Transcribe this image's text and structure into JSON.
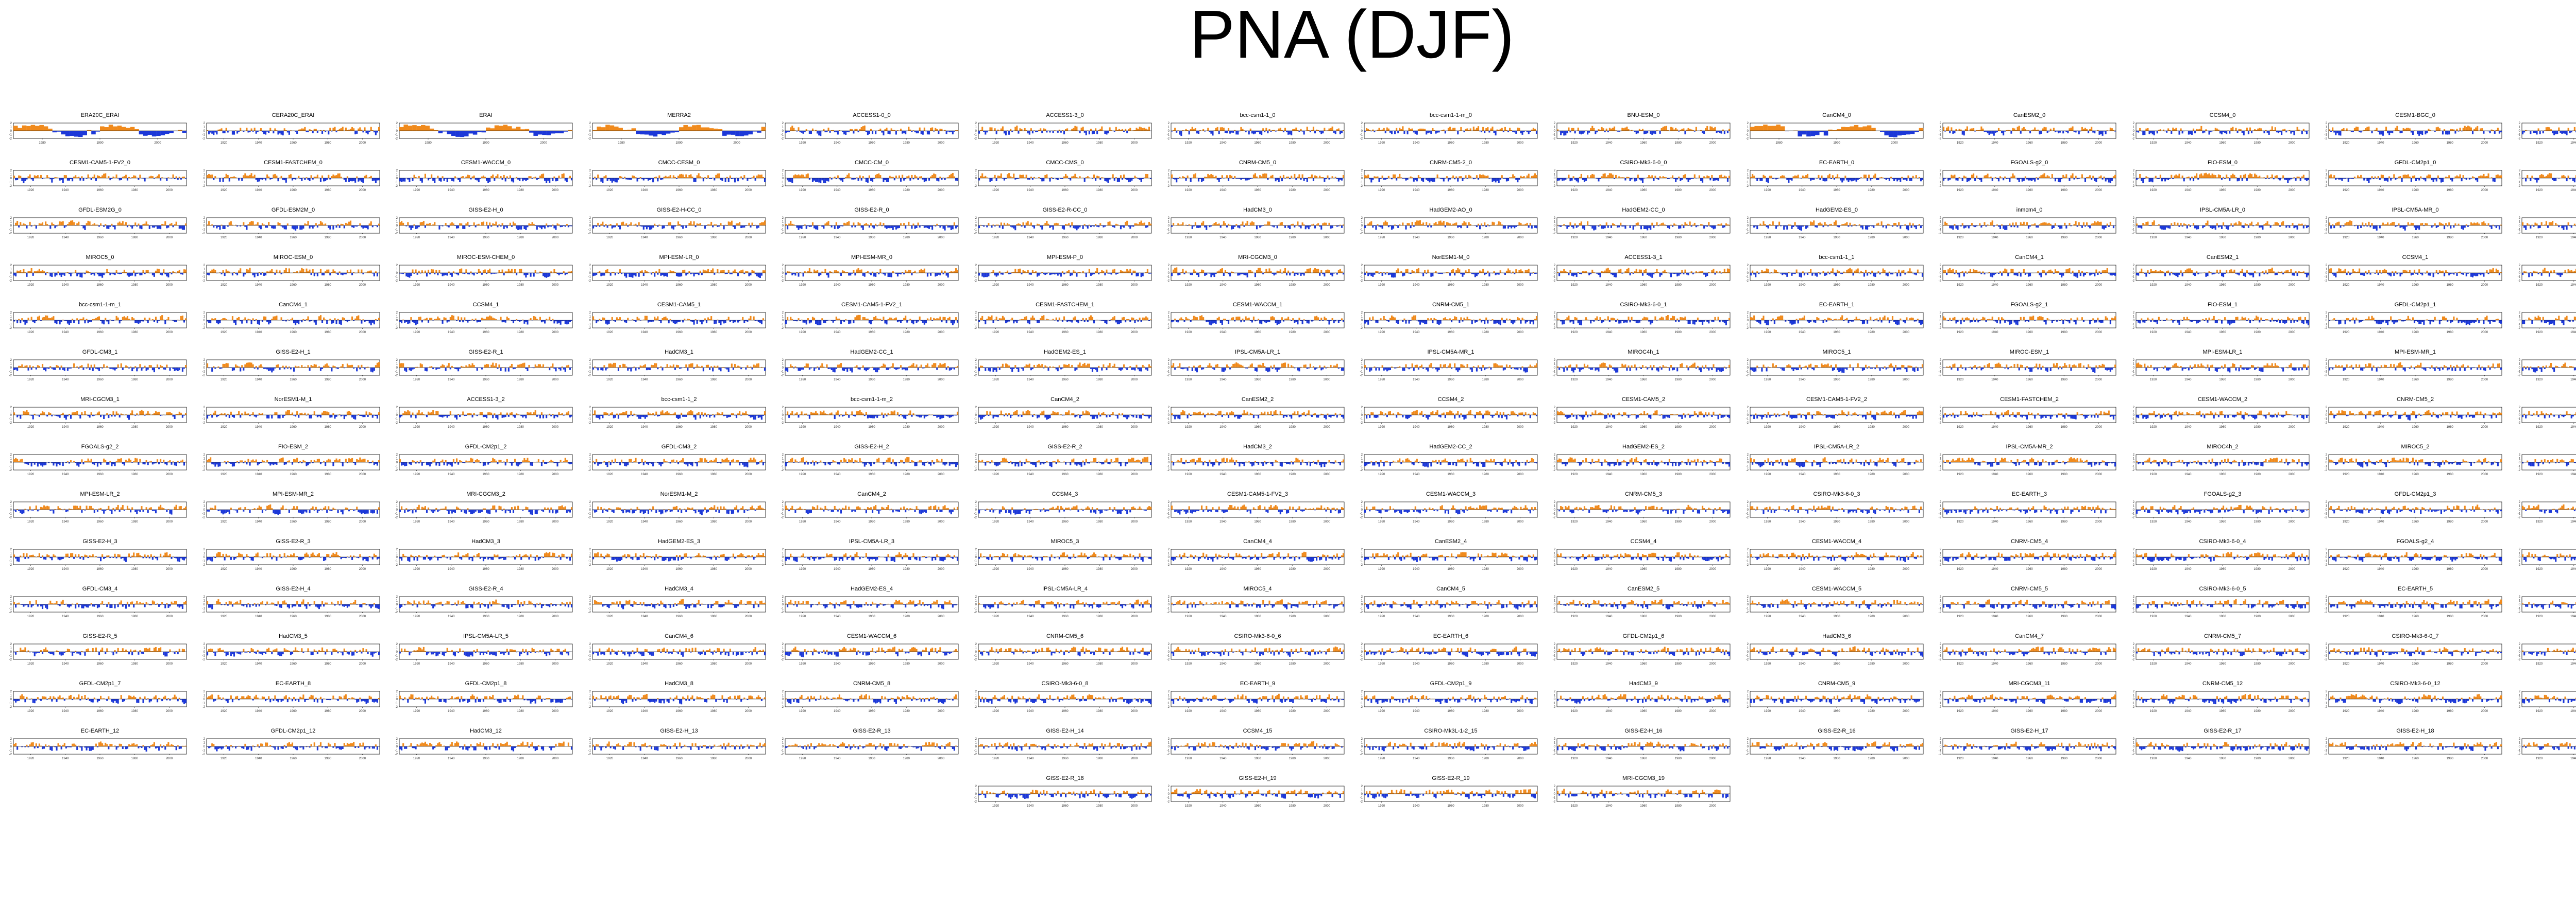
{
  "title": "PNA (DJF)",
  "colors": {
    "positive": "#f08a1c",
    "negative": "#1c38d8",
    "axis": "#000000",
    "zero_line": "#000000"
  },
  "chart_data": {
    "type": "area",
    "grid": false,
    "ylim": [
      -2,
      2
    ],
    "x_ticks_standard": [
      "1920",
      "1940",
      "1960",
      "1980",
      "2000"
    ],
    "x_ticks_short": [
      "1980",
      "1990",
      "2000"
    ],
    "y_ticks": [
      "-2",
      "-1",
      "0",
      "1",
      "2"
    ],
    "short_record_panels": [
      "ERA20C_ERAI",
      "ERAI",
      "MERRA2",
      "CanCM4_0"
    ],
    "panels": [
      "ERA20C_ERAI",
      "CERA20C_ERAI",
      "ERAI",
      "MERRA2",
      "ACCESS1-0_0",
      "ACCESS1-3_0",
      "bcc-csm1-1_0",
      "bcc-csm1-1-m_0",
      "BNU-ESM_0",
      "CanCM4_0",
      "CanESM2_0",
      "CCSM4_0",
      "CESM1-BGC_0",
      "CESM1-CAM5_0",
      "CESM1-CAM5-1-FV2_0",
      "CESM1-FASTCHEM_0",
      "CESM1-WACCM_0",
      "CMCC-CESM_0",
      "CMCC-CM_0",
      "CMCC-CMS_0",
      "CNRM-CM5_0",
      "CNRM-CM5-2_0",
      "CSIRO-Mk3-6-0_0",
      "EC-EARTH_0",
      "FGOALS-g2_0",
      "FIO-ESM_0",
      "GFDL-CM2p1_0",
      "GFDL-CM3_0",
      "GFDL-ESM2G_0",
      "GFDL-ESM2M_0",
      "GISS-E2-H_0",
      "GISS-E2-H-CC_0",
      "GISS-E2-R_0",
      "GISS-E2-R-CC_0",
      "HadCM3_0",
      "HadGEM2-AO_0",
      "HadGEM2-CC_0",
      "HadGEM2-ES_0",
      "inmcm4_0",
      "IPSL-CM5A-LR_0",
      "IPSL-CM5A-MR_0",
      "IPSL-CM5B-LR_0",
      "MIROC5_0",
      "MIROC-ESM_0",
      "MIROC-ESM-CHEM_0",
      "MPI-ESM-LR_0",
      "MPI-ESM-MR_0",
      "MPI-ESM-P_0",
      "MRI-CGCM3_0",
      "NorESM1-M_0",
      "ACCESS1-3_1",
      "bcc-csm1-1_1",
      "CanCM4_1",
      "CanESM2_1",
      "CCSM4_1",
      "CESM1-CAM5_1",
      "bcc-csm1-1-m_1",
      "CanCM4_1",
      "CCSM4_1",
      "CESM1-CAM5_1",
      "CESM1-CAM5-1-FV2_1",
      "CESM1-FASTCHEM_1",
      "CESM1-WACCM_1",
      "CNRM-CM5_1",
      "CSIRO-Mk3-6-0_1",
      "EC-EARTH_1",
      "FGOALS-g2_1",
      "FIO-ESM_1",
      "GFDL-CM2p1_1",
      "GFDL-CM3_1",
      "GFDL-CM3_1",
      "GISS-E2-H_1",
      "GISS-E2-R_1",
      "HadCM3_1",
      "HadGEM2-CC_1",
      "HadGEM2-ES_1",
      "IPSL-CM5A-LR_1",
      "IPSL-CM5A-MR_1",
      "MIROC4h_1",
      "MIROC5_1",
      "MIROC-ESM_1",
      "MPI-ESM-LR_1",
      "MPI-ESM-MR_1",
      "MPI-ESM-P_1",
      "MRI-CGCM3_1",
      "NorESM1-M_1",
      "ACCESS1-3_2",
      "bcc-csm1-1_2",
      "bcc-csm1-1-m_2",
      "CanCM4_2",
      "CanESM2_2",
      "CCSM4_2",
      "CESM1-CAM5_2",
      "CESM1-CAM5-1-FV2_2",
      "CESM1-FASTCHEM_2",
      "CESM1-WACCM_2",
      "CNRM-CM5_2",
      "CSIRO-Mk3-6-0_2",
      "FGOALS-g2_2",
      "FIO-ESM_2",
      "GFDL-CM2p1_2",
      "GFDL-CM3_2",
      "GISS-E2-H_2",
      "GISS-E2-R_2",
      "HadCM3_2",
      "HadGEM2-CC_2",
      "HadGEM2-ES_2",
      "IPSL-CM5A-LR_2",
      "IPSL-CM5A-MR_2",
      "MIROC4h_2",
      "MIROC5_2",
      "MIROC-ESM_2",
      "MPI-ESM-LR_2",
      "MPI-ESM-MR_2",
      "MRI-CGCM3_2",
      "NorESM1-M_2",
      "CanCM4_2",
      "CCSM4_3",
      "CESM1-CAM5-1-FV2_3",
      "CESM1-WACCM_3",
      "CNRM-CM5_3",
      "CSIRO-Mk3-6-0_3",
      "EC-EARTH_3",
      "FGOALS-g2_3",
      "GFDL-CM2p1_3",
      "GFDL-CM3_3",
      "GISS-E2-H_3",
      "GISS-E2-R_3",
      "HadCM3_3",
      "HadGEM2-ES_3",
      "IPSL-CM5A-LR_3",
      "MIROC5_3",
      "CanCM4_4",
      "CanESM2_4",
      "CCSM4_4",
      "CESM1-WACCM_4",
      "CNRM-CM5_4",
      "CSIRO-Mk3-6-0_4",
      "FGOALS-g2_4",
      "GFDL-CM2p1_4",
      "GFDL-CM3_4",
      "GISS-E2-H_4",
      "GISS-E2-R_4",
      "HadCM3_4",
      "HadGEM2-ES_4",
      "IPSL-CM5A-LR_4",
      "MIROC5_4",
      "CanCM4_5",
      "CanESM2_5",
      "CESM1-WACCM_5",
      "CNRM-CM5_5",
      "CSIRO-Mk3-6-0_5",
      "EC-EARTH_5",
      "GFDL-CM2p1_5",
      "GISS-E2-R_5",
      "HadCM3_5",
      "IPSL-CM5A-LR_5",
      "CanCM4_6",
      "CESM1-WACCM_6",
      "CNRM-CM5_6",
      "CSIRO-Mk3-6-0_6",
      "EC-EARTH_6",
      "GFDL-CM2p1_6",
      "HadCM3_6",
      "CanCM4_7",
      "CNRM-CM5_7",
      "CSIRO-Mk3-6-0_7",
      "EC-EARTH_7",
      "GFDL-CM2p1_7",
      "EC-EARTH_8",
      "GFDL-CM2p1_8",
      "HadCM3_8",
      "CNRM-CM5_8",
      "CSIRO-Mk3-6-0_8",
      "EC-EARTH_9",
      "GFDL-CM2p1_9",
      "HadCM3_9",
      "CNRM-CM5_9",
      "MRI-CGCM3_11",
      "CNRM-CM5_12",
      "CSIRO-Mk3-6-0_12",
      "GFDL-CM2p1_12",
      "EC-EARTH_12",
      "GFDL-CM2p1_12",
      "HadCM3_12",
      "GISS-E2-H_13",
      "GISS-E2-R_13",
      "GISS-E2-H_14",
      "CCSM4_15",
      "CSIRO-Mk3L-1-2_15",
      "GISS-E2-H_16",
      "GISS-E2-R_16",
      "GISS-E2-H_17",
      "GISS-E2-R_17",
      "GISS-E2-H_18",
      "GISS-E2-R_18",
      "GISS-E2-R_18",
      "GISS-E2-H_19",
      "GISS-E2-R_19",
      "MRI-CGCM3_19"
    ]
  }
}
